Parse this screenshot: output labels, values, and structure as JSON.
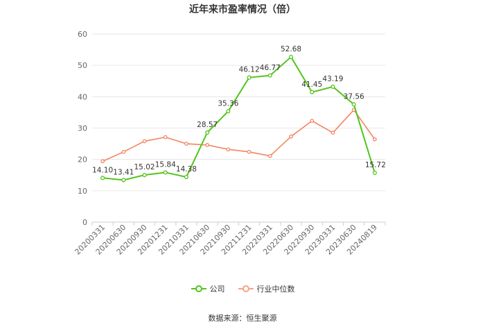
{
  "source_label": "数据来源：恒生聚源",
  "chart_data": {
    "type": "line",
    "title": "近年来市盈率情况（倍）",
    "xlabel": "",
    "ylabel": "",
    "ylim": [
      0,
      60
    ],
    "yticks": [
      0,
      10,
      20,
      30,
      40,
      50,
      60
    ],
    "grid": true,
    "legend_position": "bottom",
    "categories": [
      "20200331",
      "20200630",
      "20200930",
      "20201231",
      "20210331",
      "20210630",
      "20210930",
      "20211231",
      "20220331",
      "20220630",
      "20220930",
      "20230331",
      "20230630",
      "20240819"
    ],
    "series": [
      {
        "name": "公司",
        "color": "#52c41a",
        "values": [
          14.1,
          13.41,
          15.02,
          15.84,
          14.38,
          28.57,
          35.36,
          46.12,
          46.77,
          52.68,
          41.45,
          43.19,
          37.56,
          15.72
        ],
        "labels": [
          "14.10",
          "13.41",
          "15.02",
          "15.84",
          "14.38",
          "28.57",
          "35.36",
          "46.12",
          "46.77",
          "52.68",
          "41.45",
          "43.19",
          "37.56",
          "15.72"
        ]
      },
      {
        "name": "行业中位数",
        "color": "#f4845f",
        "values": [
          19.4,
          22.4,
          25.8,
          27.1,
          25.0,
          24.6,
          23.2,
          22.4,
          21.1,
          27.3,
          32.3,
          28.5,
          35.8,
          26.4
        ]
      }
    ]
  }
}
